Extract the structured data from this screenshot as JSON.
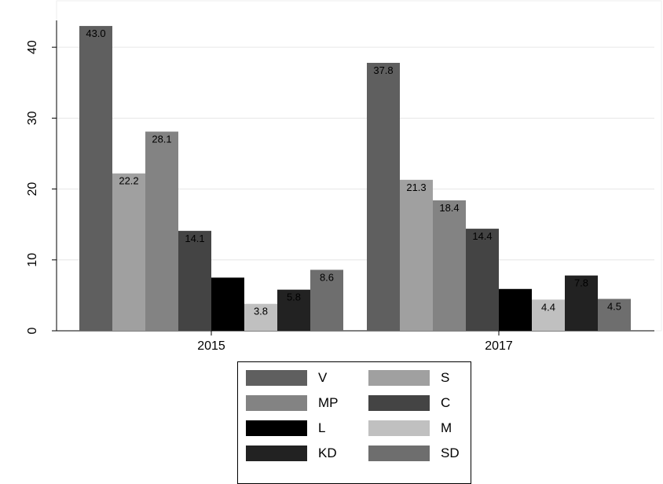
{
  "chart_data": {
    "type": "bar",
    "categories": [
      "2015",
      "2017"
    ],
    "series": [
      {
        "name": "V",
        "color": "#5f5f5f",
        "values": [
          43.0,
          37.8
        ],
        "labels": [
          "43.0",
          "37.8"
        ]
      },
      {
        "name": "S",
        "color": "#a0a0a0",
        "values": [
          22.2,
          21.3
        ],
        "labels": [
          "22.2",
          "21.3"
        ]
      },
      {
        "name": "MP",
        "color": "#838383",
        "values": [
          28.1,
          18.4
        ],
        "labels": [
          "28.1",
          "18.4"
        ]
      },
      {
        "name": "C",
        "color": "#444444",
        "values": [
          14.1,
          14.4
        ],
        "labels": [
          "14.1",
          "14.4"
        ]
      },
      {
        "name": "L",
        "color": "#000000",
        "values": [
          7.5,
          5.9
        ],
        "labels": [
          "",
          ""
        ]
      },
      {
        "name": "M",
        "color": "#c0c0c0",
        "values": [
          3.8,
          4.4
        ],
        "labels": [
          "3.8",
          "4.4"
        ]
      },
      {
        "name": "KD",
        "color": "#222222",
        "values": [
          5.8,
          7.8
        ],
        "labels": [
          "5.8",
          "7.8"
        ]
      },
      {
        "name": "SD",
        "color": "#6e6e6e",
        "values": [
          8.6,
          4.5
        ],
        "labels": [
          "8.6",
          "4.5"
        ]
      }
    ],
    "yticks": [
      0,
      10,
      20,
      30,
      40
    ],
    "ylim": [
      0,
      46
    ],
    "title": "",
    "xlabel": "",
    "ylabel": "",
    "grid": true,
    "legend_position": "bottom-center"
  }
}
